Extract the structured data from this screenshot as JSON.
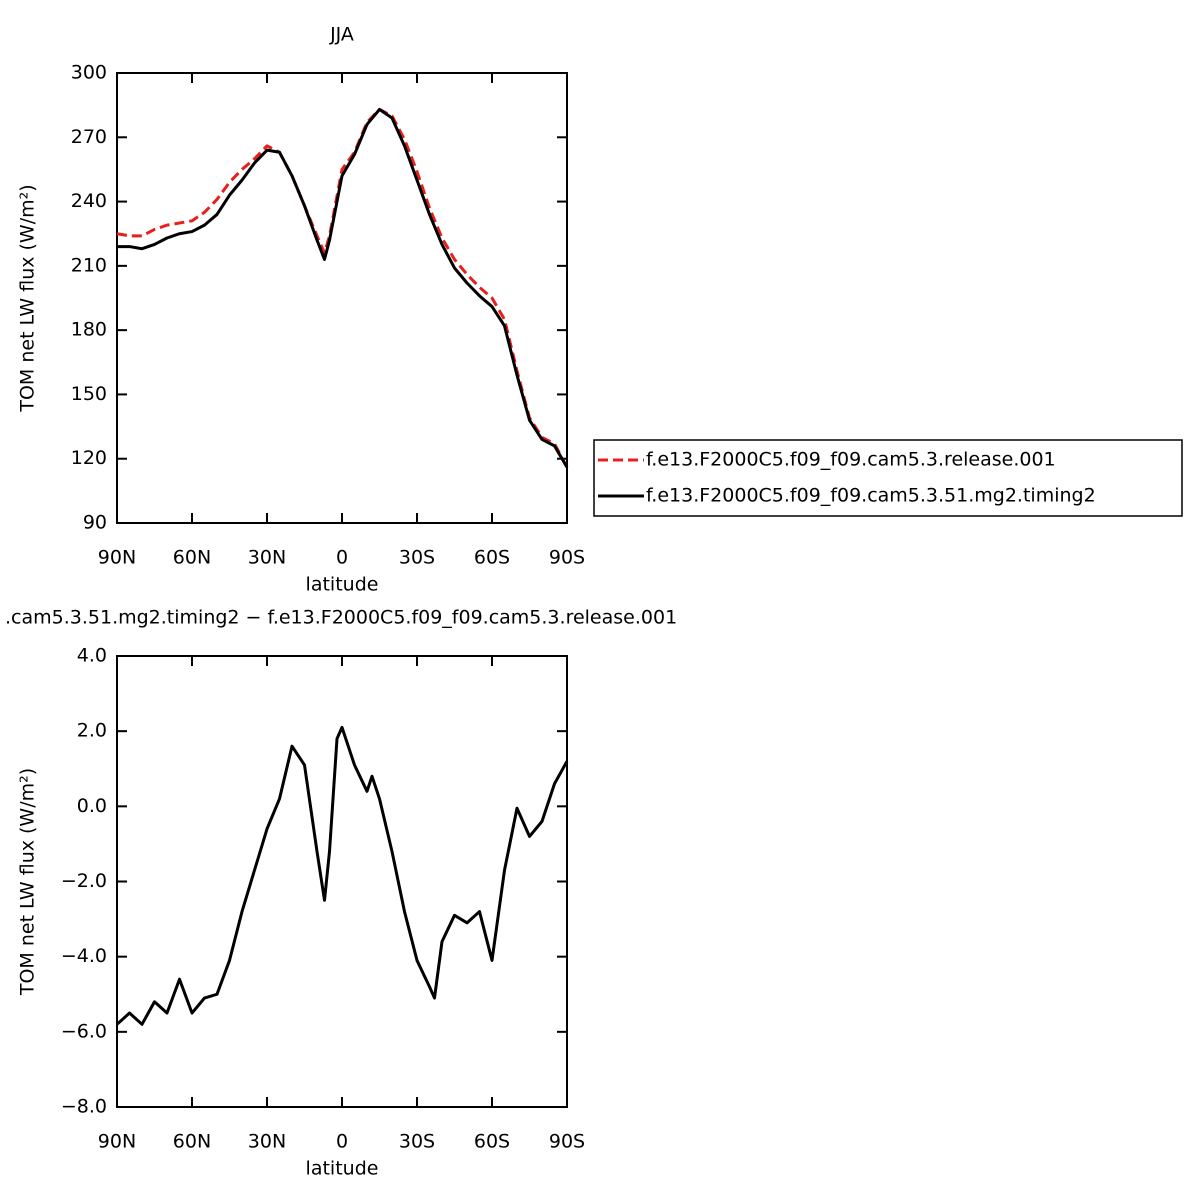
{
  "chart_data": [
    {
      "type": "line",
      "title": "JJA",
      "xlabel": "latitude",
      "ylabel": "TOM net LW flux (W/m²)",
      "x": [
        90,
        85,
        80,
        75,
        70,
        65,
        60,
        55,
        50,
        45,
        40,
        35,
        30,
        25,
        20,
        15,
        10,
        7,
        5,
        0,
        -5,
        -10,
        -15,
        -20,
        -25,
        -30,
        -35,
        -40,
        -45,
        -50,
        -55,
        -60,
        -65,
        -70,
        -75,
        -80,
        -85,
        -90
      ],
      "series": [
        {
          "name": "f.e13.F2000C5.f09_f09.cam5.3.release.001",
          "color": "#e8201c",
          "dash": true,
          "values": [
            225,
            224,
            224,
            227,
            229,
            230,
            231,
            235,
            241,
            249,
            255,
            260,
            266,
            263,
            252,
            238,
            224,
            216,
            224,
            255,
            263,
            277,
            283,
            280,
            269,
            254,
            237,
            223,
            213,
            206,
            200,
            195,
            185,
            161,
            139,
            130,
            127,
            116
          ]
        },
        {
          "name": "f.e13.F2000C5.f09_f09.cam5.3.51.mg2.timing2",
          "color": "#000000",
          "dash": false,
          "values": [
            219,
            219,
            218,
            220,
            223,
            225,
            226,
            229,
            234,
            243,
            250,
            258,
            264,
            263,
            252,
            238,
            222,
            213,
            222,
            252,
            262,
            276,
            283,
            279,
            266,
            250,
            234,
            220,
            209,
            202,
            196,
            191,
            182,
            159,
            138,
            129,
            126,
            116
          ]
        }
      ],
      "xlim": [
        90,
        -90
      ],
      "xticks": [
        {
          "value": 90,
          "label": "90N"
        },
        {
          "value": 60,
          "label": "60N"
        },
        {
          "value": 30,
          "label": "30N"
        },
        0,
        {
          "value": -30,
          "label": "30S"
        },
        {
          "value": -60,
          "label": "60S"
        },
        {
          "value": -90,
          "label": "90S"
        }
      ],
      "ylim": [
        90,
        300
      ],
      "yticks": [
        90,
        120,
        150,
        180,
        210,
        240,
        270,
        300
      ]
    },
    {
      "type": "line",
      "title": ".cam5.3.51.mg2.timing2 − f.e13.F2000C5.f09_f09.cam5.3.release.001",
      "xlabel": "latitude",
      "ylabel": "TOM net LW flux (W/m²)",
      "x": [
        90,
        85,
        80,
        75,
        70,
        65,
        60,
        55,
        50,
        45,
        40,
        35,
        30,
        25,
        20,
        15,
        10,
        7,
        5,
        2,
        0,
        -5,
        -10,
        -12,
        -15,
        -20,
        -25,
        -30,
        -35,
        -37,
        -40,
        -45,
        -50,
        -55,
        -60,
        -65,
        -70,
        -75,
        -80,
        -85,
        -90
      ],
      "series": [
        {
          "color": "#000000",
          "values": [
            -5.8,
            -5.5,
            -5.8,
            -5.2,
            -5.5,
            -4.6,
            -5.5,
            -5.1,
            -5.0,
            -4.1,
            -2.8,
            -1.7,
            -0.6,
            0.2,
            1.6,
            1.1,
            -1.2,
            -2.5,
            -1.2,
            1.8,
            2.1,
            1.1,
            0.4,
            0.8,
            0.2,
            -1.2,
            -2.8,
            -4.1,
            -4.8,
            -5.1,
            -3.6,
            -2.9,
            -3.1,
            -2.8,
            -4.1,
            -1.7,
            -0.05,
            -0.8,
            -0.4,
            0.6,
            1.2
          ]
        }
      ],
      "xlim": [
        90,
        -90
      ],
      "xticks": [
        {
          "value": 90,
          "label": "90N"
        },
        {
          "value": 60,
          "label": "60N"
        },
        {
          "value": 30,
          "label": "30N"
        },
        0,
        {
          "value": -30,
          "label": "30S"
        },
        {
          "value": -60,
          "label": "60S"
        },
        {
          "value": -90,
          "label": "90S"
        }
      ],
      "ylim": [
        -8,
        4
      ],
      "yticks": [
        {
          "value": -8,
          "label": "−8.0"
        },
        {
          "value": -6,
          "label": "−6.0"
        },
        {
          "value": -4,
          "label": "−4.0"
        },
        {
          "value": -2,
          "label": "−2.0"
        },
        {
          "value": 0,
          "label": "0.0"
        },
        {
          "value": 2,
          "label": "2.0"
        },
        {
          "value": 4,
          "label": "4.0"
        }
      ]
    }
  ]
}
